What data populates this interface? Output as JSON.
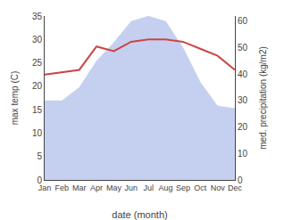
{
  "chart_data": {
    "type": "line",
    "xlabel": "date (month)",
    "ylabel": "max temp (C)",
    "y2label": "med. precipitation (kg/m2)",
    "categories": [
      "Jan",
      "Feb",
      "Mar",
      "Apr",
      "May",
      "Jun",
      "Jul",
      "Aug",
      "Sep",
      "Oct",
      "Nov",
      "Dec"
    ],
    "series": [
      {
        "type": "area",
        "axis": "y2",
        "color": "#c5d0f0",
        "values": [
          30,
          30,
          35,
          45,
          52,
          60,
          62,
          60,
          50,
          37,
          28,
          27
        ]
      },
      {
        "type": "line",
        "color": "#cc4444",
        "values": [
          22.5,
          23.0,
          23.5,
          28.5,
          27.5,
          29.5,
          30.0,
          30.0,
          29.5,
          28.0,
          26.5,
          23.5
        ]
      }
    ],
    "ylim": [
      0,
      35
    ],
    "yticks": [
      0,
      5,
      10,
      15,
      20,
      25,
      30,
      35
    ],
    "y2lim": [
      0,
      62
    ],
    "y2ticks": [
      0,
      10,
      20,
      30,
      40,
      50,
      60
    ],
    "grid": false
  }
}
